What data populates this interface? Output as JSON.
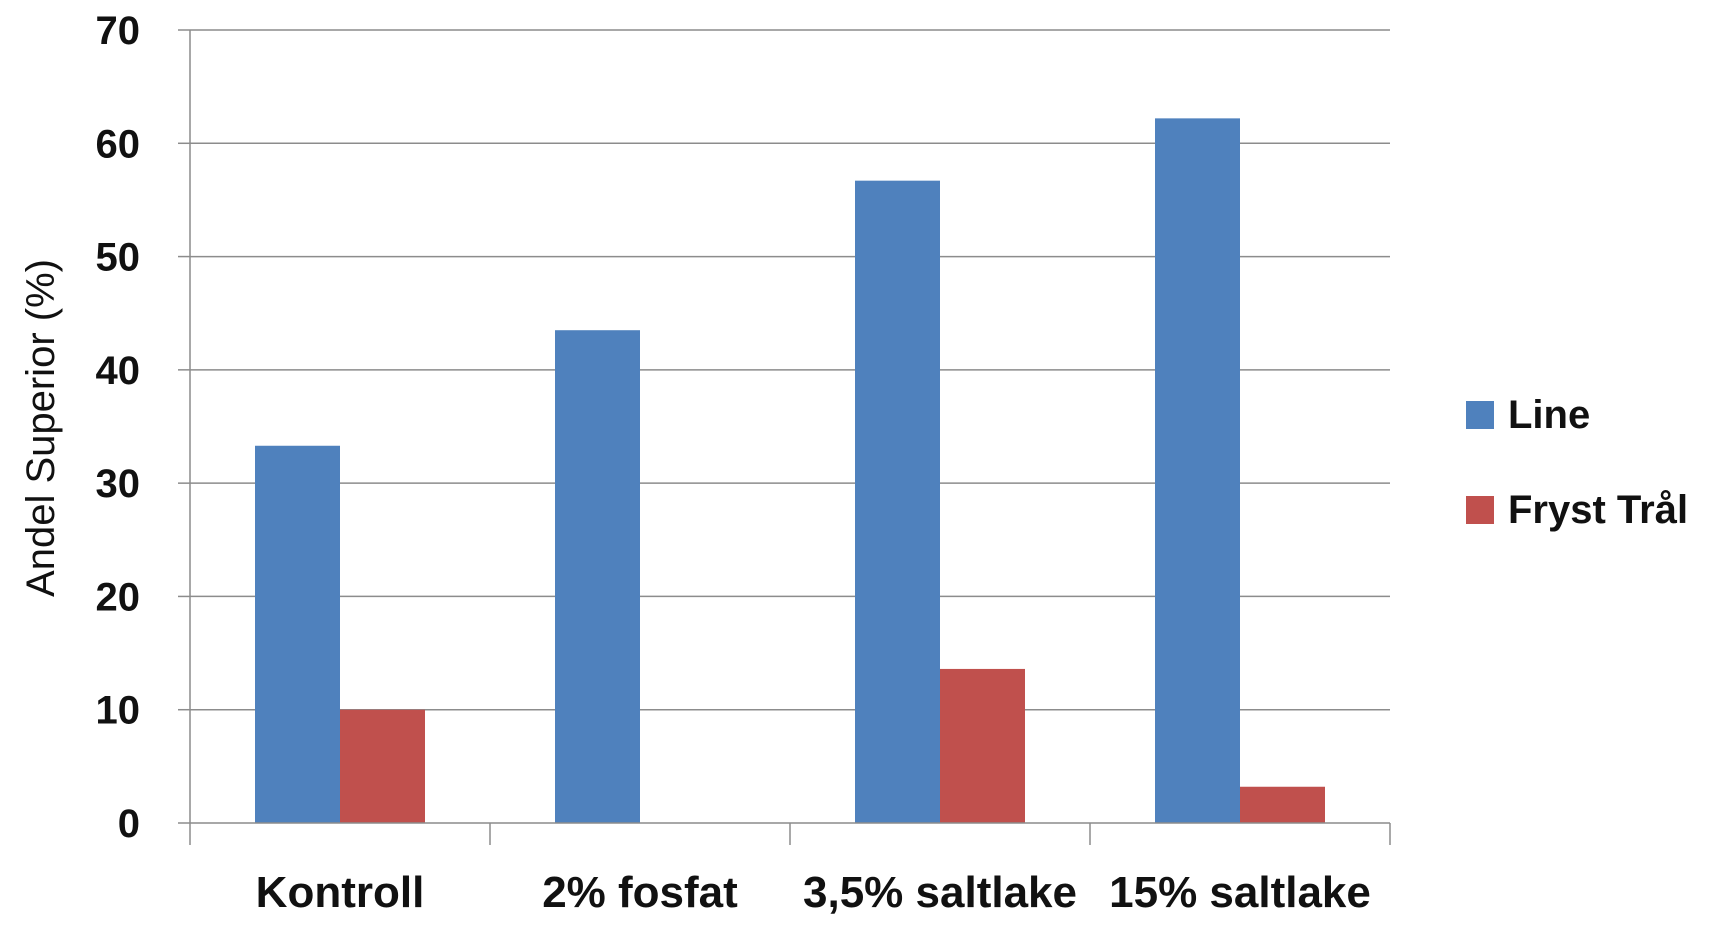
{
  "chart_data": {
    "type": "bar",
    "title": "",
    "xlabel": "",
    "ylabel": "Andel  Superior (%)",
    "categories": [
      "Kontroll",
      "2% fosfat",
      "3,5% saltlake",
      "15% saltlake"
    ],
    "series": [
      {
        "name": "Line",
        "color": "#4f81bd",
        "values": [
          33.3,
          43.5,
          56.7,
          62.2
        ]
      },
      {
        "name": "Fryst Trål",
        "color": "#c0504d",
        "values": [
          10,
          0,
          13.6,
          3.2
        ]
      }
    ],
    "ylim": [
      0,
      70
    ],
    "yticks": [
      0,
      10,
      20,
      30,
      40,
      50,
      60,
      70
    ],
    "grid": true,
    "legend_position": "right"
  }
}
